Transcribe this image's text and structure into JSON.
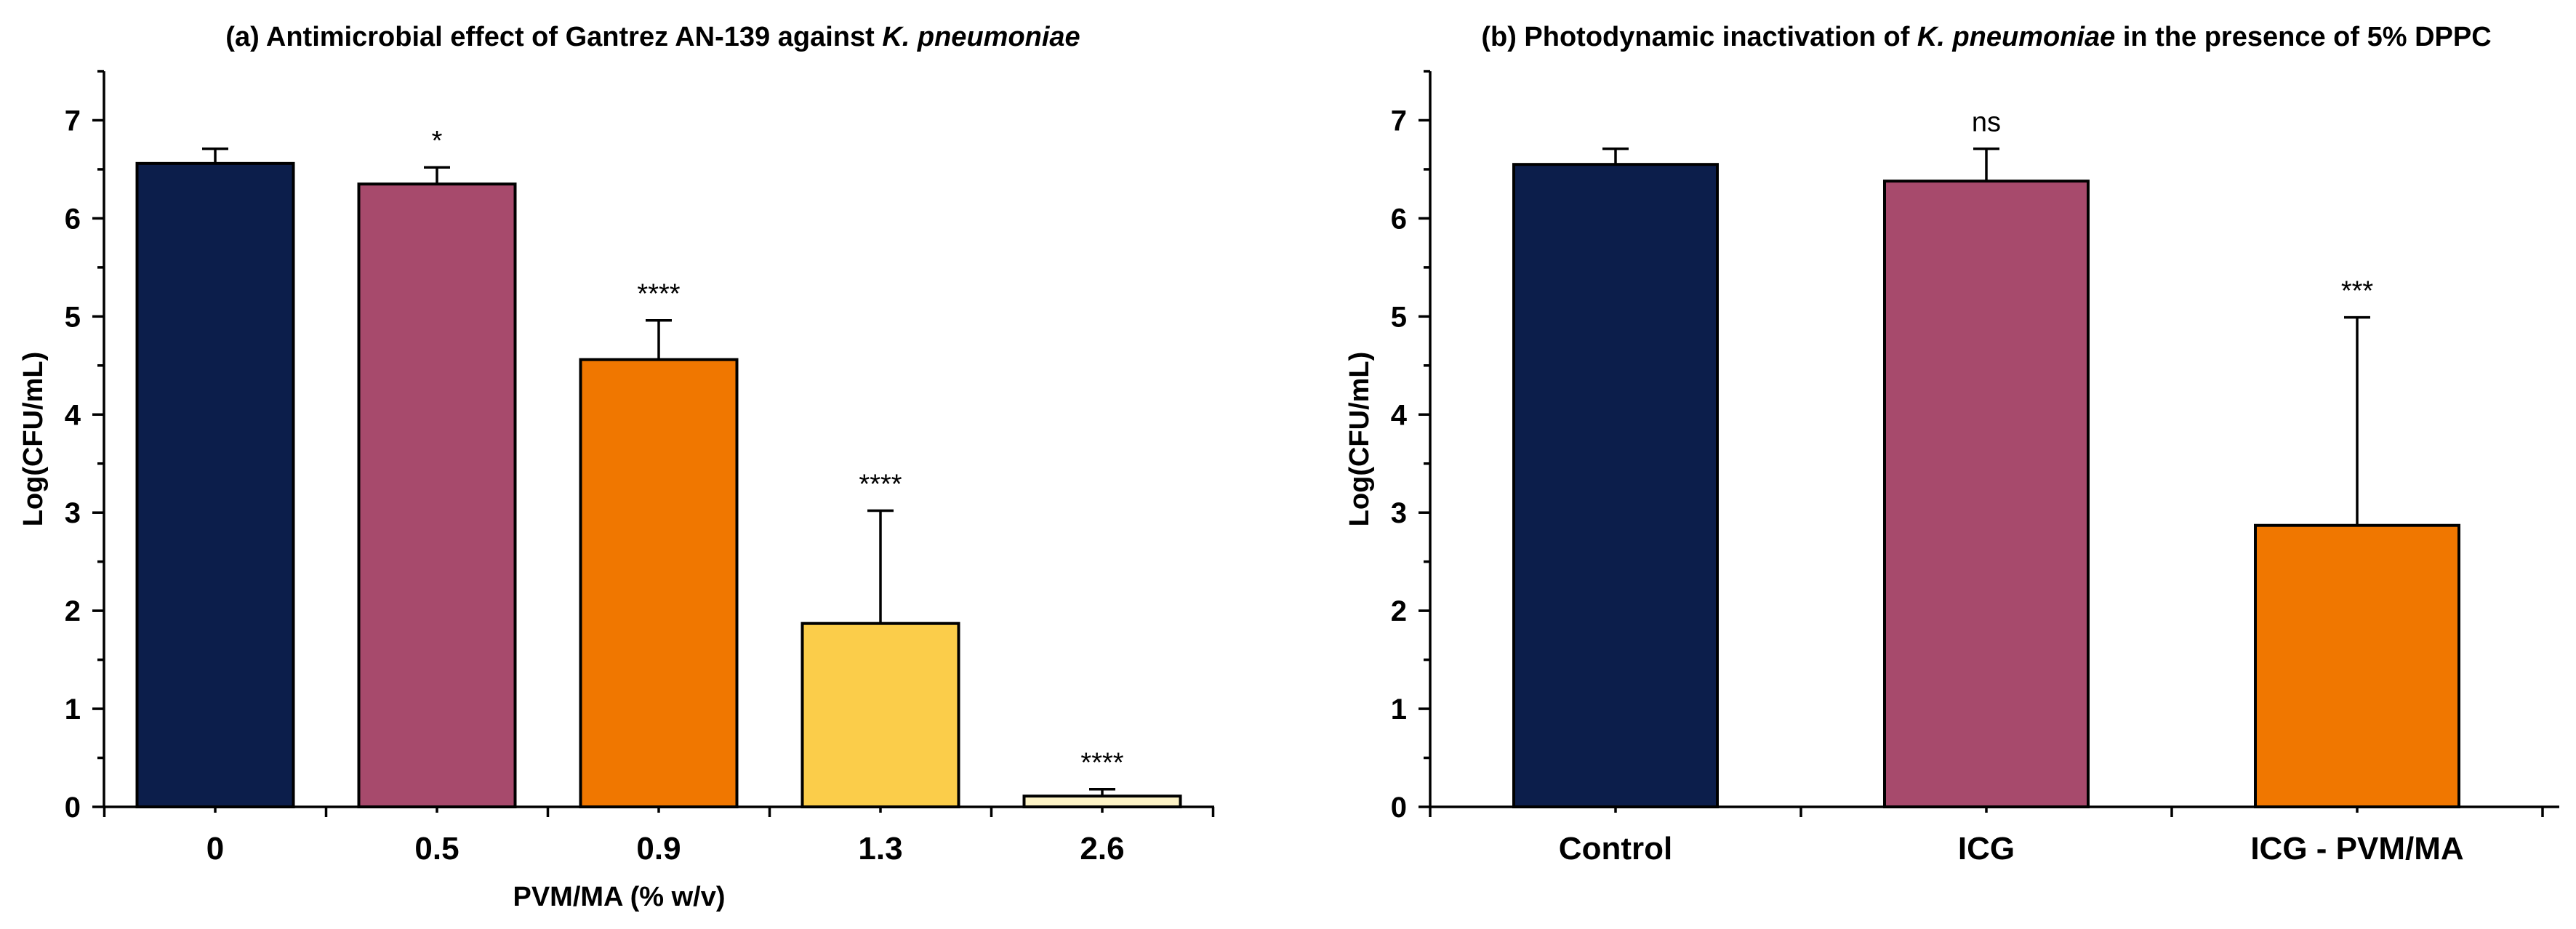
{
  "chart_data": [
    {
      "type": "bar",
      "title_parts": [
        {
          "text": "(a) Antimicrobial effect of Gantrez AN-139 against ",
          "italic": false
        },
        {
          "text": "K. pneumoniae",
          "italic": true
        }
      ],
      "categories": [
        "0",
        "0.5",
        "0.9",
        "1.3",
        "2.6"
      ],
      "values": [
        6.56,
        6.35,
        4.56,
        1.87,
        0.11
      ],
      "errors": [
        0.15,
        0.17,
        0.4,
        1.15,
        0.07
      ],
      "annotations": [
        "",
        "*",
        "****",
        "****",
        "****"
      ],
      "colors": [
        "#0c1e4b",
        "#a74a6c",
        "#f07700",
        "#fbcd4a",
        "#fdf3c6"
      ],
      "xlabel": "PVM/MA (% w/v)",
      "ylabel": "Log(CFU/mL)",
      "ylim": [
        0,
        7.5
      ],
      "yticks": [
        0,
        1,
        2,
        3,
        4,
        5,
        6,
        7
      ],
      "grid": false
    },
    {
      "type": "bar",
      "title_parts": [
        {
          "text": "(b) Photodynamic inactivation of ",
          "italic": false
        },
        {
          "text": "K. pneumoniae",
          "italic": true
        },
        {
          "text": " in the presence of 5% DPPC",
          "italic": false
        }
      ],
      "categories": [
        "Control",
        "ICG",
        "ICG - PVM/MA"
      ],
      "values": [
        6.55,
        6.38,
        2.87
      ],
      "errors": [
        0.16,
        0.33,
        2.12
      ],
      "annotations": [
        "",
        "ns",
        "***"
      ],
      "colors": [
        "#0c1e4b",
        "#a74a6c",
        "#f07700"
      ],
      "xlabel": "",
      "ylabel": "Log(CFU/mL)",
      "ylim": [
        0,
        7.5
      ],
      "yticks": [
        0,
        1,
        2,
        3,
        4,
        5,
        6,
        7
      ],
      "grid": false
    }
  ]
}
